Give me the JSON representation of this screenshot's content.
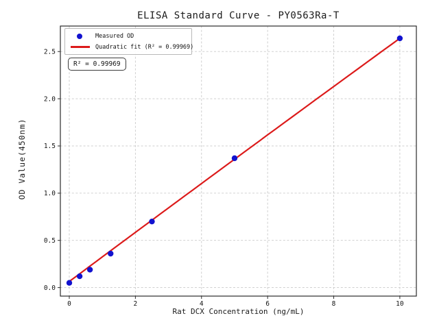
{
  "chart": {
    "title": "ELISA Standard Curve - PY0563Ra-T",
    "xlabel": "Rat DCX Concentration (ng/mL)",
    "ylabel": "OD Value(450nm)",
    "legend": [
      {
        "label": "Measured OD",
        "marker": "blue-dot"
      },
      {
        "label": "Quadratic fit (R² = 0.99969)",
        "marker": "red-line"
      }
    ],
    "annotation": "R² = 0.99969"
  },
  "chart_data": {
    "type": "scatter",
    "title": "ELISA Standard Curve - PY0563Ra-T",
    "xlabel": "Rat DCX Concentration (ng/mL)",
    "ylabel": "OD Value(450nm)",
    "series": [
      {
        "name": "Measured OD",
        "type": "scatter",
        "x": [
          0,
          0.313,
          0.625,
          1.25,
          2.5,
          5,
          10
        ],
        "y": [
          0.05,
          0.12,
          0.19,
          0.36,
          0.7,
          1.37,
          2.64
        ],
        "color": "#1212cf",
        "marker_radius": 4.2
      },
      {
        "name": "Quadratic fit",
        "type": "line",
        "fit_coefficients": {
          "a": -0.0003,
          "b": 0.2605,
          "c": 0.065
        },
        "x_range": [
          0,
          10
        ],
        "r_squared": 0.99969,
        "color": "#dc1a1a",
        "line_width": 2.2
      }
    ],
    "xlim": [
      -0.27,
      10.5
    ],
    "ylim": [
      -0.09,
      2.77
    ],
    "xticks": {
      "values": [
        0,
        2,
        4,
        6,
        8,
        10
      ],
      "labels": [
        "0",
        "2",
        "4",
        "6",
        "8",
        "10"
      ]
    },
    "yticks": {
      "values": [
        0,
        0.5,
        1.0,
        1.5,
        2.0,
        2.5
      ],
      "labels": [
        "0.0",
        "0.5",
        "1.0",
        "1.5",
        "2.0",
        "2.5"
      ]
    },
    "grid": true,
    "grid_style": "dashed",
    "legend_position": "upper left"
  },
  "colors": {
    "marker": "#1212cf",
    "fit_line": "#dc1a1a",
    "grid": "#c9c9c9",
    "frame": "#2a2a2a",
    "text": "#111111",
    "background": "#ffffff"
  }
}
